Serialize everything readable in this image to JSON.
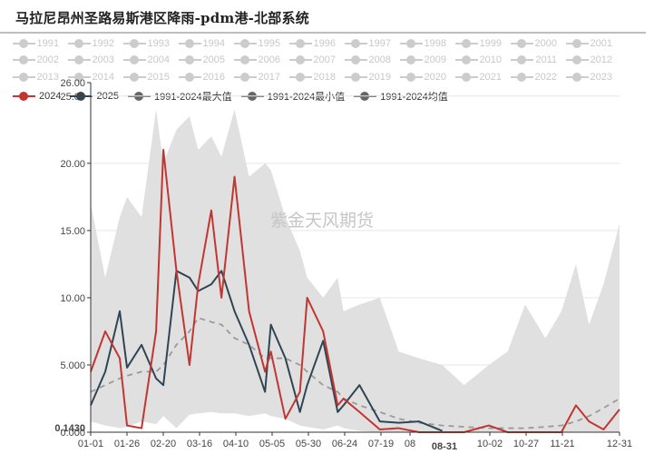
{
  "title": "马拉尼昂州圣路易斯港区降雨-pdm港-北部系统",
  "watermark": "紫金天风期货",
  "legend": {
    "rows": [
      [
        "1991",
        "1992",
        "1993",
        "1994",
        "1995",
        "1996",
        "1997",
        "1998",
        "1999",
        "2000",
        "2001"
      ],
      [
        "2002",
        "2003",
        "2004",
        "2005",
        "2006",
        "2007",
        "2008",
        "2009",
        "2010",
        "2011",
        "2012"
      ],
      [
        "2013",
        "2014",
        "2015",
        "2016",
        "2017",
        "2018",
        "2019",
        "2020",
        "2021",
        "2022",
        "2023"
      ]
    ],
    "active": [
      {
        "label": "2024",
        "color": "#c23531"
      },
      {
        "label": "2025",
        "color": "#2f4554"
      },
      {
        "label": "1991-2024最大值",
        "color": "#666666"
      },
      {
        "label": "1991-2024最小值",
        "color": "#666666"
      },
      {
        "label": "1991-2024均值",
        "color": "#666666"
      }
    ]
  },
  "axis": {
    "y_ticks": [
      "0.000",
      "5.000",
      "10.00",
      "15.00",
      "20.00",
      "26.00"
    ],
    "y_overlay_labels": [
      "25.00"
    ],
    "y_pointer_label": "0.1430",
    "x_ticks": [
      "01-01",
      "01-26",
      "02-20",
      "03-16",
      "04-10",
      "05-05",
      "05-30",
      "06-24",
      "07-19",
      "08",
      "08-31",
      "10-02",
      "10-27",
      "11-21",
      "12-31"
    ],
    "x_highlight": "08-31"
  },
  "chart_data": {
    "type": "line",
    "title": "马拉尼昂州圣路易斯港区降雨-pdm港-北部系统",
    "xlabel": "",
    "ylabel": "",
    "ylim": [
      0,
      26
    ],
    "grid": true,
    "legend_position": "top",
    "x_ticks": [
      "01-01",
      "01-26",
      "02-20",
      "03-16",
      "04-10",
      "05-05",
      "05-30",
      "06-24",
      "07-19",
      "08-31",
      "10-02",
      "10-27",
      "11-21",
      "12-31"
    ],
    "x": [
      "01-01",
      "01-11",
      "01-21",
      "01-26",
      "02-05",
      "02-15",
      "02-20",
      "03-01",
      "03-10",
      "03-16",
      "03-25",
      "04-01",
      "04-10",
      "04-20",
      "05-01",
      "05-05",
      "05-15",
      "05-25",
      "05-30",
      "06-10",
      "06-20",
      "06-24",
      "07-05",
      "07-19",
      "08-01",
      "08-15",
      "08-31",
      "09-15",
      "10-02",
      "10-15",
      "10-27",
      "11-10",
      "11-21",
      "12-01",
      "12-10",
      "12-20",
      "12-31"
    ],
    "series": [
      {
        "name": "2024",
        "color": "#c23531",
        "values": [
          4.5,
          7.5,
          5.5,
          0.5,
          0.3,
          7.5,
          21.0,
          12.0,
          5.0,
          11.0,
          16.5,
          10.0,
          19.0,
          9.0,
          4.5,
          6.0,
          1.0,
          3.0,
          10.0,
          7.5,
          2.0,
          2.5,
          1.5,
          0.2,
          0.3,
          0.0,
          0.0,
          0.0,
          0.5,
          0.0,
          0.0,
          0.0,
          0.0,
          2.0,
          0.8,
          0.2,
          1.7
        ]
      },
      {
        "name": "2025",
        "color": "#2f4554",
        "values": [
          2.0,
          4.5,
          9.0,
          4.8,
          6.5,
          4.0,
          3.5,
          12.0,
          11.5,
          10.5,
          11.0,
          12.0,
          9.0,
          6.5,
          3.0,
          8.0,
          5.5,
          1.5,
          3.5,
          6.8,
          1.5,
          2.0,
          3.5,
          0.8,
          0.7,
          0.8,
          0.1,
          null,
          null,
          null,
          null,
          null,
          null,
          null,
          null,
          null,
          null
        ]
      },
      {
        "name": "1991-2024最大值",
        "color": "#e0e0e0",
        "type": "area",
        "values": [
          17.0,
          11.5,
          16.0,
          17.5,
          16.0,
          24.0,
          20.0,
          22.5,
          23.5,
          21.0,
          22.0,
          20.5,
          24.0,
          19.0,
          20.0,
          19.5,
          16.0,
          13.5,
          11.5,
          10.0,
          11.5,
          9.0,
          9.5,
          10.0,
          6.0,
          5.5,
          5.0,
          3.5,
          5.0,
          6.0,
          9.5,
          7.0,
          9.0,
          12.5,
          8.0,
          11.0,
          15.5
        ]
      },
      {
        "name": "1991-2024最小值",
        "color": "#ffffff",
        "type": "area",
        "values": [
          0.8,
          0.5,
          0.3,
          0.4,
          0.8,
          0.6,
          1.2,
          0.3,
          1.3,
          1.4,
          1.5,
          1.4,
          1.4,
          1.2,
          1.4,
          1.2,
          1.0,
          0.5,
          0.4,
          0.2,
          0.5,
          0.3,
          0.1,
          0.0,
          0.0,
          0.0,
          0.0,
          0.0,
          0.0,
          0.0,
          0.0,
          0.0,
          0.0,
          0.0,
          0.0,
          0.0,
          0.0
        ]
      },
      {
        "name": "1991-2024均值",
        "color": "#999999",
        "dashed": true,
        "values": [
          3.0,
          3.5,
          4.0,
          4.2,
          4.5,
          4.5,
          5.0,
          6.5,
          7.5,
          8.5,
          8.2,
          8.0,
          7.0,
          6.5,
          5.5,
          5.5,
          5.5,
          5.0,
          4.5,
          3.5,
          3.0,
          2.5,
          2.0,
          1.5,
          1.0,
          0.7,
          0.5,
          0.4,
          0.3,
          0.3,
          0.3,
          0.4,
          0.5,
          0.8,
          1.2,
          1.8,
          2.5
        ]
      }
    ]
  }
}
